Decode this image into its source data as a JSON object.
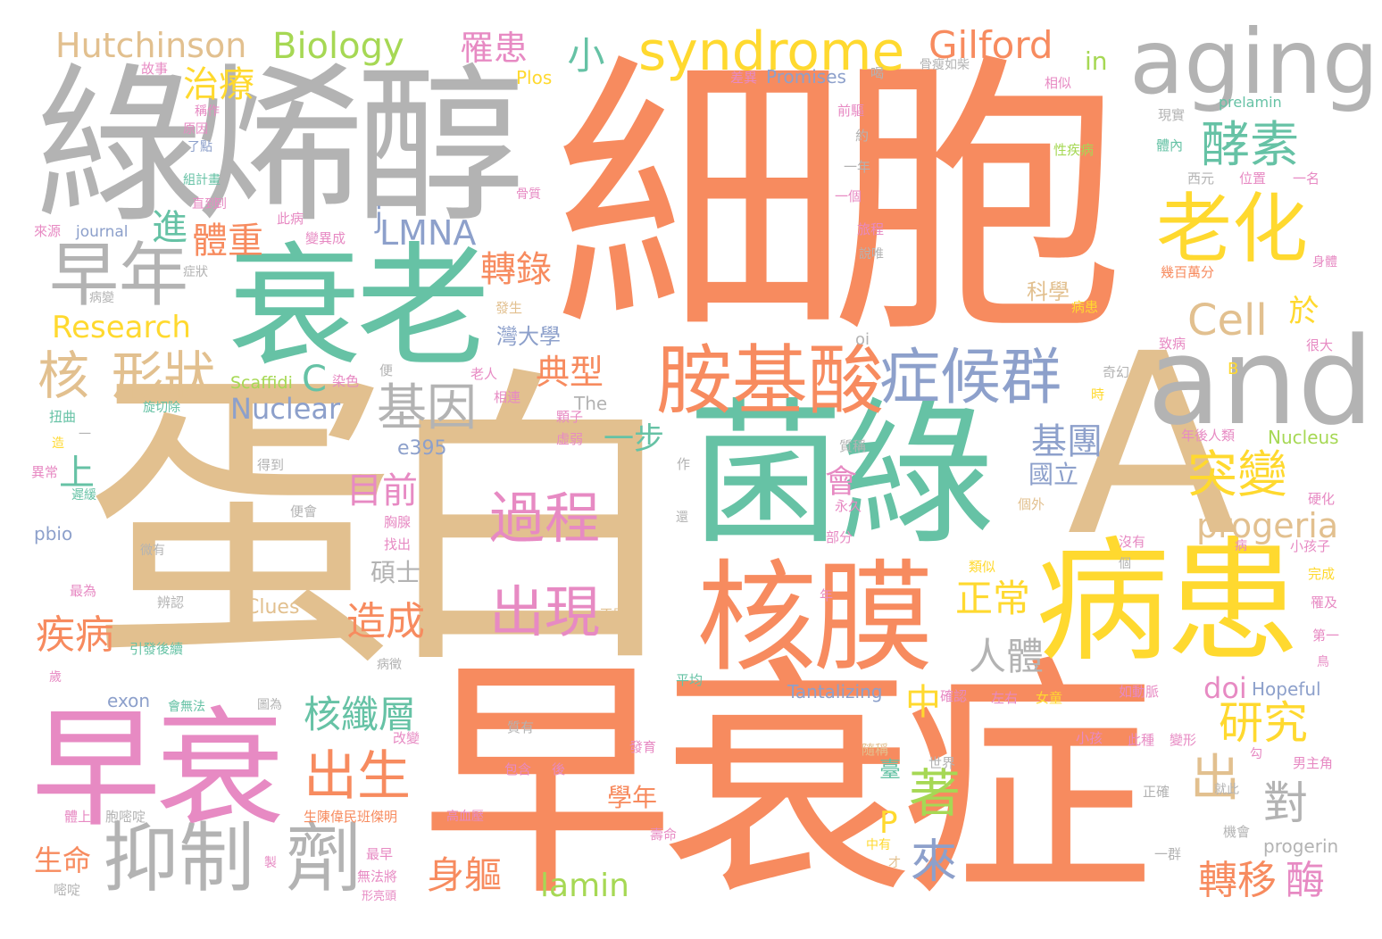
{
  "colors": {
    "orange": "#f78b5f",
    "tan": "#e2c08f",
    "gray": "#b3b3b3",
    "teal": "#66c2a5",
    "pink": "#e78ac3",
    "yellow": "#ffd92f",
    "blue": "#8da0cb",
    "lime": "#a6d854"
  },
  "words": {
    "w001": "蛋白",
    "w002": "細胞",
    "w003": "早衰症",
    "w004": "綠烯醇",
    "w005": "A",
    "w006": "菌綠",
    "w007": "衰老",
    "w008": "早衰",
    "w009": "and",
    "w010": "核膜",
    "w011": "病患",
    "w012": "aging",
    "w013": "胺基酸",
    "w014": "抑制",
    "w015": "劑",
    "w016": "syndrome",
    "w017": "症候群",
    "w018": "老化",
    "w019": "早年",
    "w020": "Gilford",
    "w021": "Hutchinson",
    "w022": "Biology",
    "w023": "酵素",
    "w024": "核",
    "w025": "形狀",
    "w026": "過程",
    "w027": "出現",
    "w028": "基因",
    "w029": "Cell",
    "w030": "突變",
    "w031": "出生",
    "w032": "LMNA",
    "w033": "progeria",
    "w034": "著",
    "w035": "出",
    "w036": "研究",
    "w037": "對",
    "w038": "來",
    "w039": "轉移",
    "w040": "酶",
    "w041": "lamin",
    "w042": "核纖層",
    "w043": "Research",
    "w044": "Nuclear",
    "w045": "正常",
    "w046": "人體",
    "w047": "造成",
    "w048": "疾病",
    "w049": "轉錄",
    "w050": "典型",
    "w051": "目前",
    "w052": "基團",
    "w053": "治療",
    "w054": "體重",
    "w055": "罹患",
    "w056": "上",
    "w057": "進",
    "w058": "小",
    "w059": "中",
    "w060": "身軀",
    "w061": "生命",
    "w062": "doi",
    "w063": "C",
    "w064": "P",
    "w065": "於",
    "w066": "會",
    "w067": "一步",
    "w068": "國立",
    "w069": "碩士",
    "w070": "學年",
    "w071": "in",
    "w072": "j",
    "w073": "科學",
    "w074": "灣大學",
    "w075": "臺",
    "w076": "Promises",
    "w077": "Plos",
    "w078": "prelamin",
    "w079": "Scaffidi",
    "w080": "e395",
    "w081": "pbio",
    "w082": "Clues",
    "w083": "Tantalizing",
    "w084": "Hopeful",
    "w085": "Nucleus",
    "w086": "exon",
    "w087": "The",
    "w088": "journal",
    "w089": "progerin",
    "w090": "oi",
    "w091": "B",
    "w092": "故事",
    "w093": "差異",
    "w094": "喝",
    "w095": "骨瘦如柴",
    "w096": "相似",
    "w097": "現實",
    "w098": "體內",
    "w099": "性疾病",
    "w100": "前驅",
    "w101": "約",
    "w102": "一年",
    "w103": "一個",
    "w104": "稱作",
    "w105": "原因",
    "w106": "了點",
    "w107": "組計畫",
    "w108": "直到",
    "w109": "來源",
    "w110": "此病",
    "w111": "變異成",
    "w112": "旅程",
    "w113": "說唯",
    "w114": "症狀",
    "w115": "病變",
    "w116": "骨質",
    "w117": "西元",
    "w118": "位置",
    "w119": "一名",
    "w120": "幾百萬分",
    "w121": "身體",
    "w122": "發生",
    "w123": "病患",
    "w124": "致病",
    "w125": "很大",
    "w126": "老人",
    "w127": "染色",
    "w128": "便",
    "w129": "旋切除",
    "w130": "扭曲",
    "w131": "相連",
    "w132": "奇幻",
    "w133": "時",
    "w134": "顆子",
    "w135": "虛弱",
    "w136": "年後人類",
    "w137": "質稱",
    "w138": "作",
    "w139": "異常",
    "w140": "得到",
    "w141": "遲緩",
    "w142": "便會",
    "w143": "胸腺",
    "w144": "找出",
    "w145": "永久",
    "w146": "部分",
    "w147": "個外",
    "w148": "硬化",
    "w149": "小孩子",
    "w150": "微有",
    "w151": "沒有",
    "w152": "病",
    "w153": "完成",
    "w154": "最為",
    "w155": "辨認",
    "w156": "不足",
    "w157": "類似",
    "w158": "罹及",
    "w159": "引發後續",
    "w160": "第一",
    "w161": "病徵",
    "w162": "歲",
    "w163": "平均",
    "w164": "左右",
    "w165": "女童",
    "w166": "如動脈",
    "w167": "會無法",
    "w168": "圖為",
    "w169": "確認",
    "w170": "質有",
    "w171": "改變",
    "w172": "發育",
    "w173": "隨稱",
    "w174": "小孩",
    "w175": "此種",
    "w176": "變形",
    "w177": "男主角",
    "w178": "世界",
    "w179": "包含",
    "w180": "後",
    "w181": "生陳偉民班傑明",
    "w182": "高血壓",
    "w183": "體上",
    "w184": "胞嘧啶",
    "w185": "正確",
    "w186": "壽命",
    "w187": "無法將",
    "w188": "最早",
    "w189": "中有",
    "w190": "機會",
    "w191": "一群",
    "w192": "才",
    "w193": "嘧啶",
    "w194": "形亮頭",
    "w195": "製",
    "w196": "年",
    "w197": "勾",
    "w198": "就此",
    "w199": "鳥",
    "w200": "造",
    "w201": "還",
    "w202": "到",
    "w203": "個",
    "w204": "一"
  }
}
